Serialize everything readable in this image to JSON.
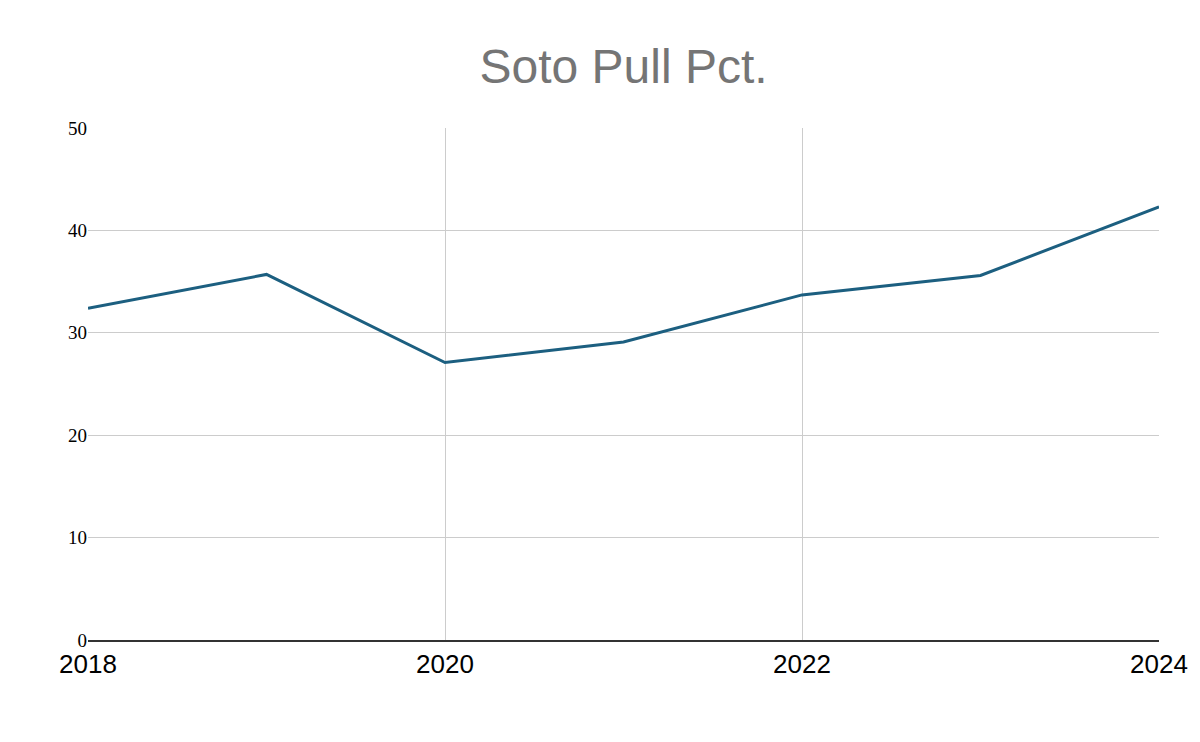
{
  "chart_data": {
    "type": "line",
    "title": "Soto Pull Pct.",
    "x": [
      2018,
      2019,
      2020,
      2021,
      2022,
      2023,
      2024
    ],
    "values": [
      32.4,
      35.7,
      27.1,
      29.1,
      33.7,
      35.6,
      42.3
    ],
    "color": "#1c5f80",
    "xlim": [
      2018,
      2024
    ],
    "xticks": [
      2018,
      2020,
      2022,
      2024
    ],
    "ylim": [
      0,
      50
    ],
    "yticks": [
      0,
      10,
      20,
      30,
      40,
      50
    ],
    "grid": true
  }
}
